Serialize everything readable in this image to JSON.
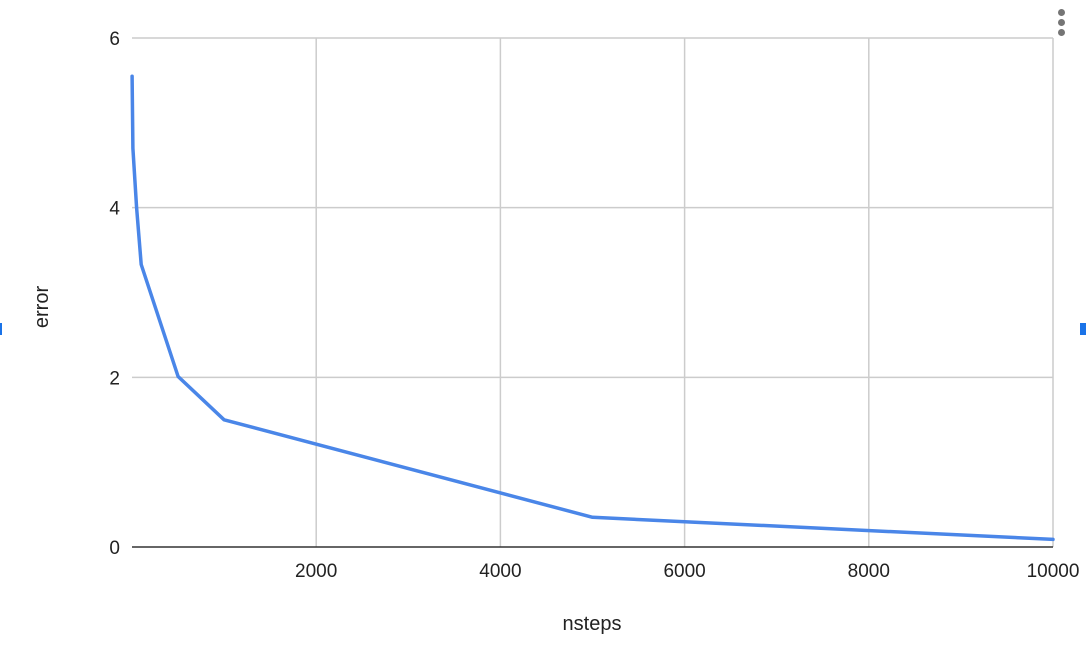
{
  "chart_data": {
    "type": "line",
    "title": "",
    "xlabel": "nsteps",
    "ylabel": "error",
    "xlim": [
      0,
      10000
    ],
    "ylim": [
      0,
      6
    ],
    "x_ticks": [
      2000,
      4000,
      6000,
      8000,
      10000
    ],
    "y_ticks": [
      0,
      2,
      4,
      6
    ],
    "grid": true,
    "colors": {
      "series": "#4a86e8",
      "grid": "#cccccc",
      "baseline": "#333333"
    },
    "series": [
      {
        "x": [
          1,
          10,
          50,
          100,
          500,
          1000,
          5000,
          10000
        ],
        "y": [
          5.55,
          4.7,
          4.0,
          3.33,
          2.01,
          1.5,
          0.35,
          0.09
        ]
      }
    ]
  },
  "controls": {
    "menu_icon": "more-vert-icon"
  }
}
